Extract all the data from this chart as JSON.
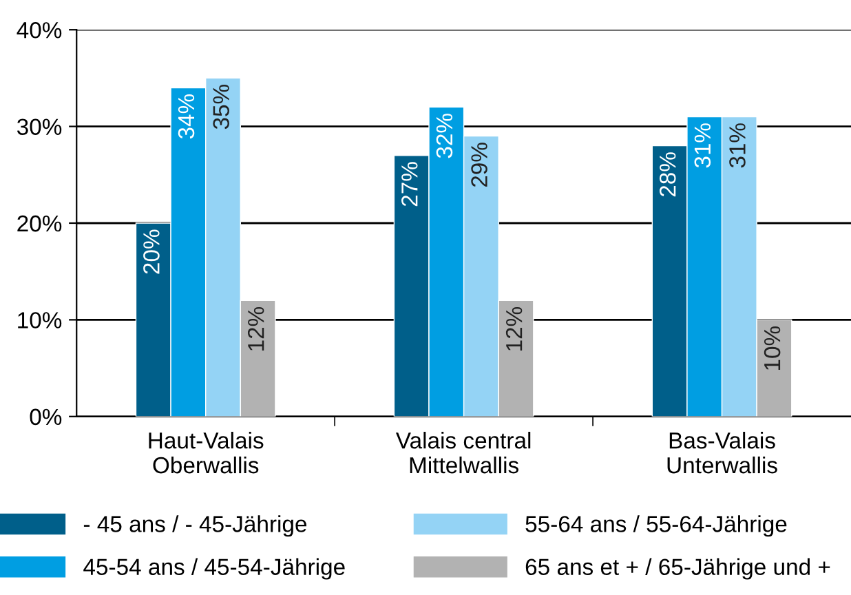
{
  "chart_data": {
    "type": "bar",
    "categories": [
      "Haut-Valais\nOberwallis",
      "Valais central\nMittelwallis",
      "Bas-Valais\nUnterwallis"
    ],
    "series": [
      {
        "name": "- 45 ans / - 45-Jährige",
        "color": "#005f8a",
        "values": [
          20,
          27,
          28
        ],
        "value_labels": [
          "20%",
          "27%",
          "28%"
        ]
      },
      {
        "name": "45-54 ans / 45-54-Jährige",
        "color": "#009ee2",
        "values": [
          34,
          32,
          31
        ],
        "value_labels": [
          "34%",
          "32%",
          "31%"
        ]
      },
      {
        "name": "55-64 ans / 55-64-Jährige",
        "color": "#94d3f5",
        "values": [
          35,
          29,
          31
        ],
        "value_labels": [
          "35%",
          "29%",
          "31%"
        ]
      },
      {
        "name": "65 ans et + / 65-Jährige und +",
        "color": "#b2b2b2",
        "values": [
          12,
          12,
          10
        ],
        "value_labels": [
          "12%",
          "12%",
          "10%"
        ]
      }
    ],
    "ylim": [
      0,
      40
    ],
    "yticks": [
      {
        "value": 0,
        "label": "0%"
      },
      {
        "value": 10,
        "label": "10%"
      },
      {
        "value": 20,
        "label": "20%"
      },
      {
        "value": 30,
        "label": "30%"
      },
      {
        "value": 40,
        "label": "40%"
      }
    ],
    "grid": "y",
    "legend": "bottom"
  }
}
